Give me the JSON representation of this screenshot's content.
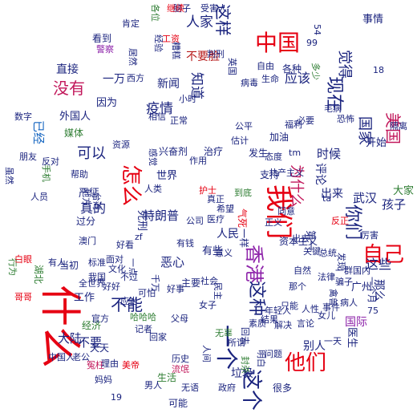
{
  "title": "",
  "palette": {
    "red": "#e60012",
    "navy": "#1a237e",
    "purple": "#8e24aa",
    "blue": "#1565c0",
    "green": "#2e7d32",
    "lime": "#7cb342",
    "teal": "#00897b",
    "orange": "#ef6c00",
    "magenta": "#c2185b",
    "darkred": "#b71c1c"
  },
  "words": [
    {
      "text": "什么",
      "color": "red"
    },
    {
      "text": "自己",
      "color": "red"
    },
    {
      "text": "我们",
      "color": "red"
    },
    {
      "text": "中国",
      "color": "red"
    },
    {
      "text": "他们",
      "color": "red"
    },
    {
      "text": "香港",
      "color": "purple"
    },
    {
      "text": "一个",
      "color": "navy"
    },
    {
      "text": "这个",
      "color": "navy"
    },
    {
      "text": "没有",
      "color": "magenta"
    },
    {
      "text": "怎么",
      "color": "red"
    },
    {
      "text": "你们",
      "color": "navy"
    },
    {
      "text": "美国",
      "color": "magenta"
    },
    {
      "text": "现在",
      "color": "navy"
    },
    {
      "text": "这样",
      "color": "navy"
    },
    {
      "text": "为什么",
      "color": "magenta"
    },
    {
      "text": "觉得",
      "color": "navy"
    },
    {
      "text": "可以",
      "color": "navy"
    },
    {
      "text": "这种",
      "color": "navy"
    },
    {
      "text": "不能",
      "color": "navy"
    },
    {
      "text": "国家",
      "color": "navy"
    },
    {
      "text": "这些",
      "color": "navy"
    },
    {
      "text": "知道",
      "color": "navy"
    },
    {
      "text": "应该",
      "color": "navy"
    },
    {
      "text": "疫情",
      "color": "navy"
    },
    {
      "text": "人家",
      "color": "navy"
    },
    {
      "text": "武汉",
      "color": "navy"
    },
    {
      "text": "孩子",
      "color": "navy"
    },
    {
      "text": "已经",
      "color": "blue"
    },
    {
      "text": "真的",
      "color": "navy"
    },
    {
      "text": "时候",
      "color": "navy"
    },
    {
      "text": "直接",
      "color": "navy"
    },
    {
      "text": "不要",
      "color": "navy"
    },
    {
      "text": "别人",
      "color": "navy"
    },
    {
      "text": "大陆",
      "color": "navy"
    },
    {
      "text": "出来",
      "color": "navy"
    },
    {
      "text": "事情",
      "color": "navy"
    },
    {
      "text": "评论",
      "color": "navy"
    },
    {
      "text": "新闻",
      "color": "navy"
    },
    {
      "text": "一万",
      "color": "navy"
    },
    {
      "text": "恶心",
      "color": "navy"
    },
    {
      "text": "国际",
      "color": "purple"
    },
    {
      "text": "医生",
      "color": "navy"
    },
    {
      "text": "第一",
      "color": "navy"
    },
    {
      "text": "垃圾",
      "color": "navy"
    },
    {
      "text": "那么",
      "color": "navy"
    },
    {
      "text": "因为",
      "color": "navy"
    },
    {
      "text": "有些",
      "color": "navy"
    },
    {
      "text": "世界",
      "color": "navy"
    },
    {
      "text": "人民",
      "color": "navy"
    },
    {
      "text": "特朗普",
      "color": "navy"
    },
    {
      "text": "外国人",
      "color": "navy"
    },
    {
      "text": "开始",
      "color": "navy"
    },
    {
      "text": "不要脸",
      "color": "darkred"
    },
    {
      "text": "死刑",
      "color": "navy"
    },
    {
      "text": "各种",
      "color": "navy"
    },
    {
      "text": "广州",
      "color": "navy"
    },
    {
      "text": "经济",
      "color": "green"
    },
    {
      "text": "大家",
      "color": "green"
    },
    {
      "text": "反正",
      "color": "red"
    },
    {
      "text": "资本主义",
      "color": "navy"
    },
    {
      "text": "共产主义",
      "color": "navy"
    },
    {
      "text": "严惩",
      "color": "navy"
    },
    {
      "text": "支持",
      "color": "navy"
    },
    {
      "text": "工作",
      "color": "navy"
    },
    {
      "text": "相信",
      "color": "navy"
    },
    {
      "text": "媒体",
      "color": "green"
    },
    {
      "text": "生活",
      "color": "green"
    },
    {
      "text": "发生",
      "color": "navy"
    },
    {
      "text": "治疗",
      "color": "navy"
    },
    {
      "text": "可能",
      "color": "navy"
    },
    {
      "text": "很多",
      "color": "navy"
    },
    {
      "text": "天天",
      "color": "navy"
    },
    {
      "text": "老公",
      "color": "navy"
    },
    {
      "text": "父母",
      "color": "navy"
    },
    {
      "text": "自由",
      "color": "navy"
    },
    {
      "text": "生命",
      "color": "navy"
    },
    {
      "text": "所谓",
      "color": "navy"
    },
    {
      "text": "必要",
      "color": "navy"
    },
    {
      "text": "主要",
      "color": "navy"
    },
    {
      "text": "公司",
      "color": "navy"
    },
    {
      "text": "医疗",
      "color": "navy"
    },
    {
      "text": "护士",
      "color": "red"
    },
    {
      "text": "作用",
      "color": "navy"
    },
    {
      "text": "帮助",
      "color": "navy"
    },
    {
      "text": "反对",
      "color": "navy"
    },
    {
      "text": "朋友",
      "color": "navy"
    },
    {
      "text": "当初",
      "color": "navy"
    },
    {
      "text": "过分",
      "color": "navy"
    },
    {
      "text": "澳门",
      "color": "navy"
    },
    {
      "text": "地方",
      "color": "navy"
    },
    {
      "text": "一样",
      "color": "navy"
    },
    {
      "text": "工资",
      "color": "red"
    },
    {
      "text": "看到",
      "color": "navy"
    },
    {
      "text": "恐怖",
      "color": "navy"
    },
    {
      "text": "气死",
      "color": "red"
    },
    {
      "text": "毛病",
      "color": "navy"
    },
    {
      "text": "隔离",
      "color": "navy"
    },
    {
      "text": "加油",
      "color": "navy"
    },
    {
      "text": "正常",
      "color": "navy"
    },
    {
      "text": "兴奋剂",
      "color": "navy"
    },
    {
      "text": "估计",
      "color": "navy"
    },
    {
      "text": "有钱",
      "color": "navy"
    },
    {
      "text": "人员",
      "color": "navy"
    },
    {
      "text": "真正",
      "color": "navy"
    },
    {
      "text": "有人",
      "color": "navy"
    },
    {
      "text": "湖北",
      "color": "green"
    },
    {
      "text": "哥哥",
      "color": "red"
    },
    {
      "text": "白眼",
      "color": "red"
    },
    {
      "text": "手机",
      "color": "green"
    },
    {
      "text": "行为",
      "color": "green"
    },
    {
      "text": "虽然",
      "color": "navy"
    },
    {
      "text": "数字",
      "color": "navy"
    },
    {
      "text": "公平",
      "color": "navy"
    },
    {
      "text": "福利",
      "color": "navy"
    },
    {
      "text": "经验",
      "color": "navy"
    },
    {
      "text": "脑子",
      "color": "navy"
    },
    {
      "text": "受害人",
      "color": "navy"
    },
    {
      "text": "糟糕",
      "color": "navy"
    },
    {
      "text": "一个月",
      "color": "navy"
    },
    {
      "text": "总统",
      "color": "navy"
    },
    {
      "text": "台湾",
      "color": "navy"
    },
    {
      "text": "英国",
      "color": "navy"
    },
    {
      "text": "出去",
      "color": "navy"
    },
    {
      "text": "关键",
      "color": "navy"
    },
    {
      "text": "官方",
      "color": "navy"
    },
    {
      "text": "西方",
      "color": "navy"
    },
    {
      "text": "无语",
      "color": "navy"
    },
    {
      "text": "无辜",
      "color": "green"
    },
    {
      "text": "封杀",
      "color": "green"
    },
    {
      "text": "禽兽",
      "color": "navy"
    },
    {
      "text": "那个",
      "color": "navy"
    },
    {
      "text": "人类",
      "color": "navy"
    },
    {
      "text": "感觉",
      "color": "navy"
    },
    {
      "text": "tm",
      "color": "navy"
    },
    {
      "text": "zf",
      "color": "navy"
    },
    {
      "text": "ta",
      "color": "navy"
    },
    {
      "text": "75",
      "color": "navy"
    },
    {
      "text": "18",
      "color": "navy"
    },
    {
      "text": "19",
      "color": "navy"
    },
    {
      "text": "54",
      "color": "navy"
    },
    {
      "text": "99",
      "color": "navy"
    },
    {
      "text": "多少",
      "color": "green"
    },
    {
      "text": "各位",
      "color": "green"
    },
    {
      "text": "到底",
      "color": "green"
    },
    {
      "text": "继续",
      "color": "red"
    },
    {
      "text": "警察",
      "color": "purple"
    },
    {
      "text": "肯定",
      "color": "navy"
    },
    {
      "text": "居然",
      "color": "navy"
    },
    {
      "text": "好看",
      "color": "navy"
    },
    {
      "text": "意义",
      "color": "navy"
    },
    {
      "text": "流氓",
      "color": "magenta"
    },
    {
      "text": "冤枉",
      "color": "magenta"
    },
    {
      "text": "社会",
      "color": "navy"
    },
    {
      "text": "民主",
      "color": "navy"
    },
    {
      "text": "历史",
      "color": "navy"
    },
    {
      "text": "自然",
      "color": "navy"
    },
    {
      "text": "理由",
      "color": "navy"
    },
    {
      "text": "政府",
      "color": "navy"
    },
    {
      "text": "人间",
      "color": "navy"
    },
    {
      "text": "女子",
      "color": "navy"
    },
    {
      "text": "男人",
      "color": "navy"
    },
    {
      "text": "小时",
      "color": "navy"
    },
    {
      "text": "资源",
      "color": "navy"
    },
    {
      "text": "病毒",
      "color": "navy"
    },
    {
      "text": "判刑",
      "color": "navy"
    },
    {
      "text": "好事",
      "color": "navy"
    },
    {
      "text": "千万",
      "color": "navy"
    },
    {
      "text": "明白",
      "color": "navy"
    },
    {
      "text": "问题",
      "color": "navy"
    },
    {
      "text": "全世界",
      "color": "navy"
    },
    {
      "text": "中国人",
      "color": "navy"
    },
    {
      "text": "回家",
      "color": "navy"
    },
    {
      "text": "妈妈",
      "color": "navy"
    },
    {
      "text": "美帝",
      "color": "red"
    },
    {
      "text": "可怕",
      "color": "navy"
    },
    {
      "text": "哈哈哈",
      "color": "green"
    },
    {
      "text": "记者",
      "color": "navy"
    },
    {
      "text": "应当",
      "color": "navy"
    },
    {
      "text": "好好",
      "color": "navy"
    },
    {
      "text": "文化",
      "color": "navy"
    },
    {
      "text": "不过",
      "color": "navy"
    },
    {
      "text": "一点",
      "color": "navy"
    },
    {
      "text": "面对",
      "color": "navy"
    },
    {
      "text": "标准",
      "color": "navy"
    },
    {
      "text": "我国",
      "color": "navy"
    },
    {
      "text": "希望",
      "color": "navy"
    },
    {
      "text": "结果",
      "color": "navy"
    },
    {
      "text": "回去",
      "color": "navy"
    },
    {
      "text": "年轻人",
      "color": "navy"
    },
    {
      "text": "素质",
      "color": "navy"
    },
    {
      "text": "态度",
      "color": "navy"
    },
    {
      "text": "解决",
      "color": "navy"
    },
    {
      "text": "只能",
      "color": "navy"
    },
    {
      "text": "女儿",
      "color": "navy"
    },
    {
      "text": "病人",
      "color": "navy"
    },
    {
      "text": "言论",
      "color": "navy"
    },
    {
      "text": "一天",
      "color": "navy"
    },
    {
      "text": "一群",
      "color": "navy"
    },
    {
      "text": "发现",
      "color": "navy"
    },
    {
      "text": "厉害",
      "color": "navy"
    },
    {
      "text": "人性",
      "color": "navy"
    },
    {
      "text": "法律",
      "color": "navy"
    },
    {
      "text": "国内",
      "color": "navy"
    },
    {
      "text": "同意",
      "color": "navy"
    },
    {
      "text": "正义",
      "color": "navy"
    },
    {
      "text": "事件",
      "color": "navy"
    },
    {
      "text": "骗子",
      "color": "navy"
    },
    {
      "text": "父亲",
      "color": "navy"
    },
    {
      "text": "学生",
      "color": "navy"
    },
    {
      "text": "以后",
      "color": "navy"
    },
    {
      "text": "还有",
      "color": "navy"
    },
    {
      "text": "不会",
      "color": "navy"
    },
    {
      "text": "哪里",
      "color": "navy"
    },
    {
      "text": "只要",
      "color": "navy"
    },
    {
      "text": "一直",
      "color": "navy"
    },
    {
      "text": "告诉",
      "color": "navy"
    },
    {
      "text": "造成",
      "color": "navy"
    },
    {
      "text": "一下",
      "color": "navy"
    },
    {
      "text": "负责",
      "color": "navy"
    },
    {
      "text": "要求",
      "color": "navy"
    },
    {
      "text": "不是",
      "color": "navy"
    },
    {
      "text": "时间",
      "color": "navy"
    },
    {
      "text": "明星",
      "color": "purple"
    },
    {
      "text": "就是",
      "color": "navy"
    }
  ]
}
